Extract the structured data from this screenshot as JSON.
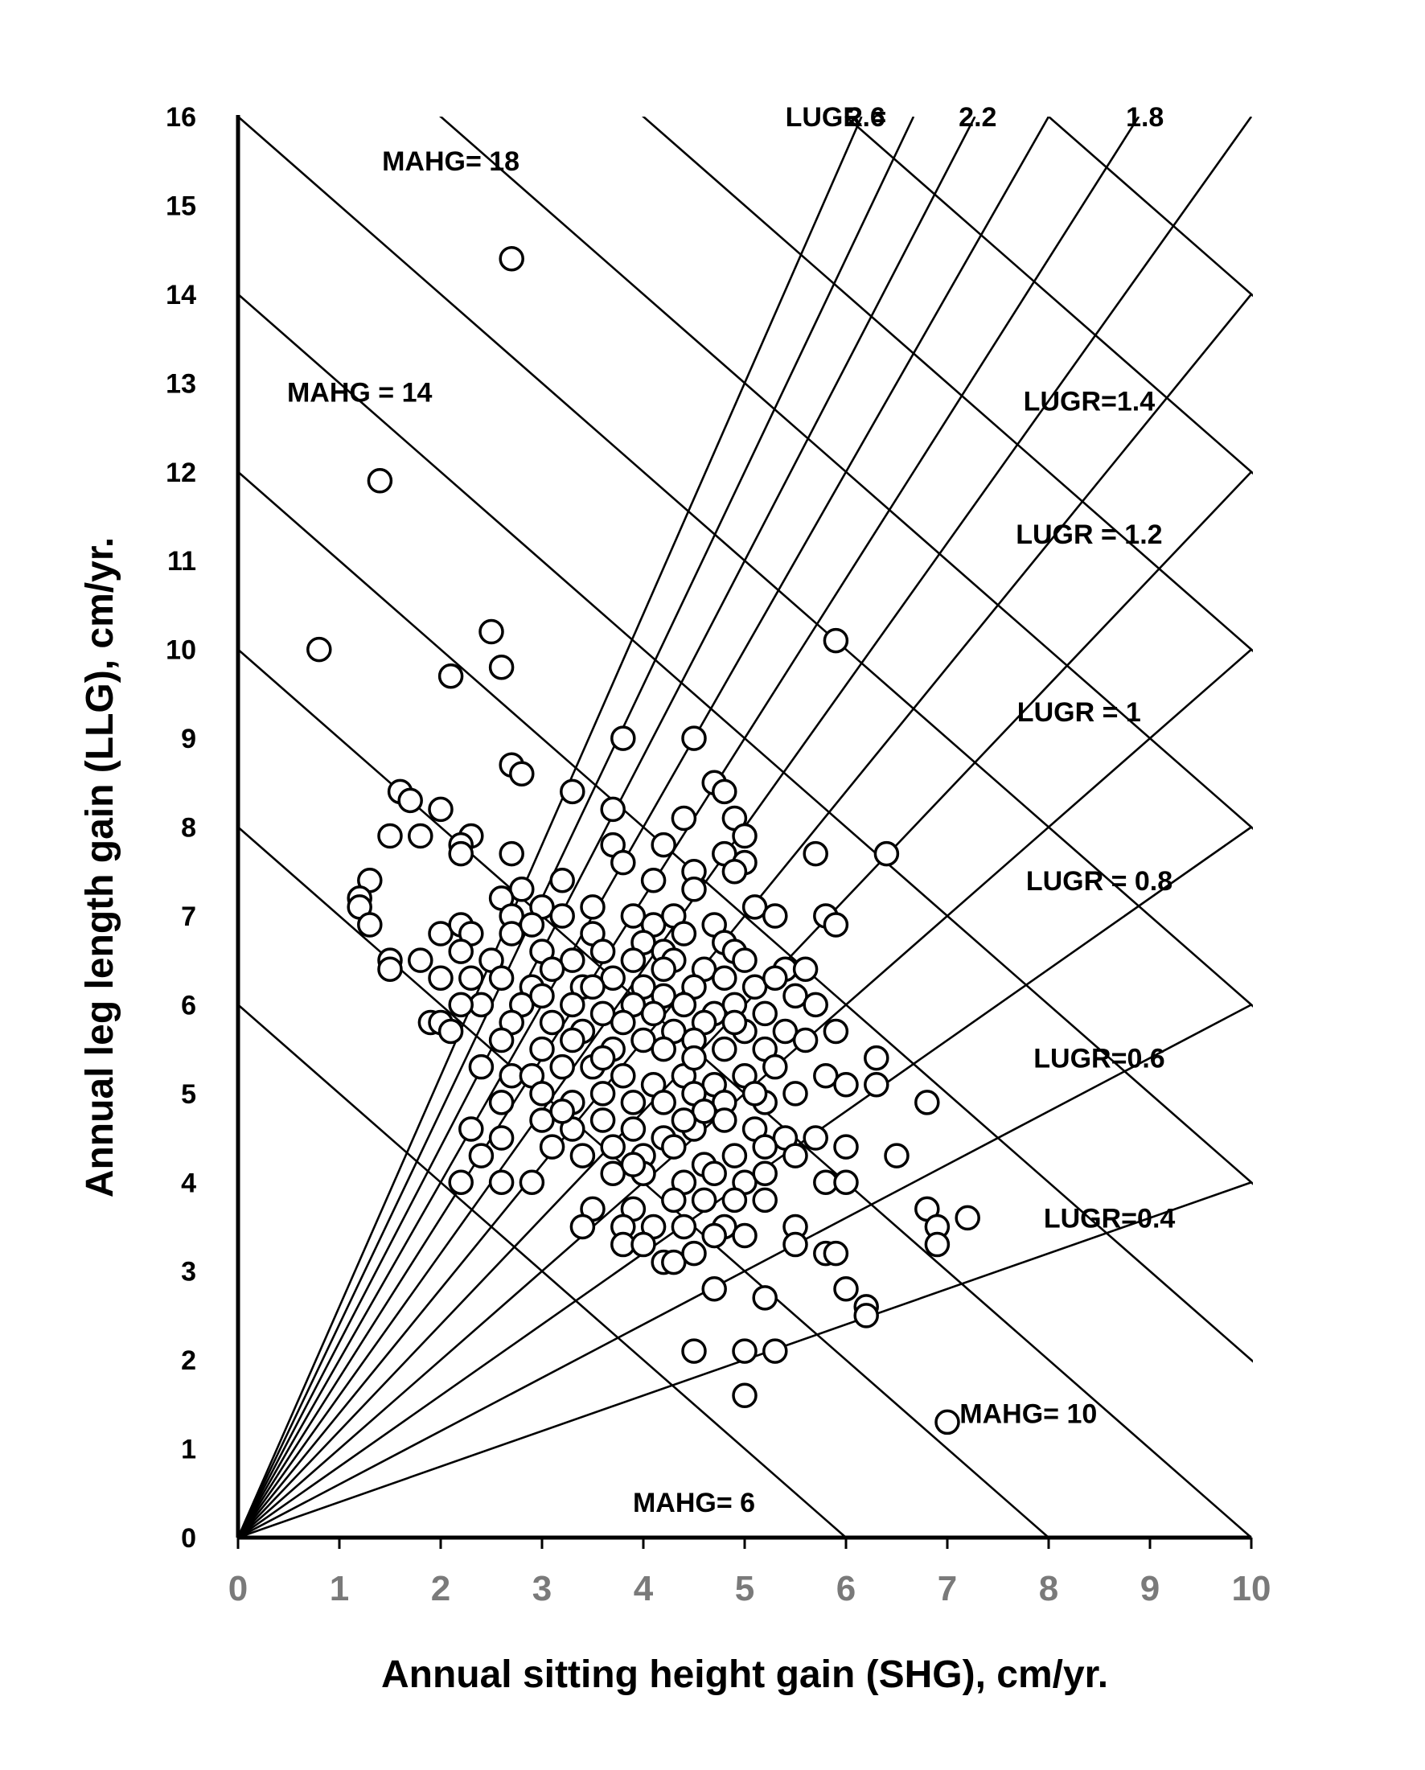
{
  "chart_data": {
    "type": "scatter",
    "xlabel": "Annual sitting height gain (SHG), cm/yr.",
    "ylabel": "Annual leg length gain (LLG), cm/yr.",
    "xlim": [
      0,
      10
    ],
    "ylim": [
      0,
      16
    ],
    "x_ticks": [
      "0",
      "1",
      "2",
      "3",
      "4",
      "5",
      "6",
      "7",
      "8",
      "9",
      "10"
    ],
    "y_ticks": [
      "0",
      "1",
      "2",
      "3",
      "4",
      "5",
      "6",
      "7",
      "8",
      "9",
      "10",
      "11",
      "12",
      "13",
      "14",
      "15",
      "16"
    ],
    "grid": false,
    "mahg_lines": [
      6,
      8,
      10,
      12,
      14,
      16,
      18,
      20,
      22,
      24
    ],
    "lugr_lines": [
      0.4,
      0.6,
      0.8,
      1.0,
      1.2,
      1.4,
      1.6,
      1.8,
      2.0,
      2.2,
      2.4,
      2.6
    ],
    "annotations": [
      {
        "text": "LUGR =",
        "x": 5.9,
        "y": 16.0
      },
      {
        "text": "2.6",
        "x": 6.2,
        "y": 16.0
      },
      {
        "text": "2.2",
        "x": 7.3,
        "y": 16.0
      },
      {
        "text": "1.8",
        "x": 8.95,
        "y": 16.0
      },
      {
        "text": "MAHG= 18",
        "x": 2.1,
        "y": 15.5
      },
      {
        "text": "MAHG = 14",
        "x": 1.2,
        "y": 12.9
      },
      {
        "text": "LUGR=1.4",
        "x": 8.4,
        "y": 12.8
      },
      {
        "text": "LUGR = 1.2",
        "x": 8.4,
        "y": 11.3
      },
      {
        "text": "LUGR = 1",
        "x": 8.3,
        "y": 9.3
      },
      {
        "text": "LUGR = 0.8",
        "x": 8.5,
        "y": 7.4
      },
      {
        "text": "LUGR=0.6",
        "x": 8.5,
        "y": 5.4
      },
      {
        "text": "LUGR=0.4",
        "x": 8.6,
        "y": 3.6
      },
      {
        "text": "MAHG= 10",
        "x": 7.8,
        "y": 1.4
      },
      {
        "text": "MAHG= 6",
        "x": 4.5,
        "y": 0.4
      }
    ],
    "series": [
      {
        "points": [
          [
            2.7,
            14.4
          ],
          [
            1.4,
            11.9
          ],
          [
            0.8,
            10.0
          ],
          [
            2.5,
            10.2
          ],
          [
            2.6,
            9.8
          ],
          [
            2.1,
            9.7
          ],
          [
            5.9,
            10.1
          ],
          [
            3.8,
            9.0
          ],
          [
            4.5,
            9.0
          ],
          [
            2.7,
            8.7
          ],
          [
            2.8,
            8.6
          ],
          [
            3.3,
            8.4
          ],
          [
            4.7,
            8.5
          ],
          [
            4.8,
            8.4
          ],
          [
            1.6,
            8.4
          ],
          [
            1.7,
            8.3
          ],
          [
            2.0,
            8.2
          ],
          [
            3.7,
            8.2
          ],
          [
            4.9,
            8.1
          ],
          [
            5.0,
            7.9
          ],
          [
            1.5,
            7.9
          ],
          [
            1.8,
            7.9
          ],
          [
            2.3,
            7.9
          ],
          [
            2.2,
            7.8
          ],
          [
            2.2,
            7.7
          ],
          [
            2.7,
            7.7
          ],
          [
            5.7,
            7.7
          ],
          [
            6.4,
            7.7
          ],
          [
            4.2,
            7.8
          ],
          [
            4.4,
            8.1
          ],
          [
            3.7,
            7.8
          ],
          [
            3.8,
            7.6
          ],
          [
            4.8,
            7.7
          ],
          [
            5.0,
            7.6
          ],
          [
            4.9,
            7.5
          ],
          [
            1.3,
            7.4
          ],
          [
            2.8,
            7.3
          ],
          [
            3.2,
            7.4
          ],
          [
            4.1,
            7.4
          ],
          [
            4.5,
            7.5
          ],
          [
            4.5,
            7.3
          ],
          [
            1.2,
            7.2
          ],
          [
            1.2,
            7.1
          ],
          [
            2.6,
            7.2
          ],
          [
            3.0,
            7.1
          ],
          [
            5.1,
            7.1
          ],
          [
            1.3,
            6.9
          ],
          [
            2.7,
            7.0
          ],
          [
            3.2,
            7.0
          ],
          [
            3.5,
            7.1
          ],
          [
            3.9,
            7.0
          ],
          [
            4.1,
            6.9
          ],
          [
            4.3,
            7.0
          ],
          [
            4.7,
            6.9
          ],
          [
            5.3,
            7.0
          ],
          [
            5.8,
            7.0
          ],
          [
            5.9,
            6.9
          ],
          [
            2.0,
            6.8
          ],
          [
            2.2,
            6.9
          ],
          [
            2.3,
            6.8
          ],
          [
            2.7,
            6.8
          ],
          [
            2.9,
            6.9
          ],
          [
            3.5,
            6.8
          ],
          [
            4.0,
            6.7
          ],
          [
            4.2,
            6.6
          ],
          [
            4.4,
            6.8
          ],
          [
            4.8,
            6.7
          ],
          [
            4.9,
            6.6
          ],
          [
            1.5,
            6.5
          ],
          [
            1.5,
            6.4
          ],
          [
            1.8,
            6.5
          ],
          [
            2.2,
            6.6
          ],
          [
            2.5,
            6.5
          ],
          [
            3.0,
            6.6
          ],
          [
            3.3,
            6.5
          ],
          [
            3.6,
            6.6
          ],
          [
            3.9,
            6.5
          ],
          [
            4.3,
            6.5
          ],
          [
            4.6,
            6.4
          ],
          [
            5.0,
            6.5
          ],
          [
            5.4,
            6.4
          ],
          [
            5.6,
            6.4
          ],
          [
            2.0,
            6.3
          ],
          [
            2.3,
            6.3
          ],
          [
            2.6,
            6.3
          ],
          [
            2.9,
            6.2
          ],
          [
            3.1,
            6.4
          ],
          [
            3.4,
            6.2
          ],
          [
            3.7,
            6.3
          ],
          [
            4.0,
            6.2
          ],
          [
            4.2,
            6.1
          ],
          [
            4.5,
            6.2
          ],
          [
            4.8,
            6.3
          ],
          [
            5.1,
            6.2
          ],
          [
            5.3,
            6.3
          ],
          [
            5.5,
            6.1
          ],
          [
            2.4,
            6.0
          ],
          [
            2.2,
            6.0
          ],
          [
            2.8,
            6.0
          ],
          [
            3.0,
            6.1
          ],
          [
            3.3,
            6.0
          ],
          [
            3.6,
            5.9
          ],
          [
            3.9,
            6.0
          ],
          [
            4.1,
            5.9
          ],
          [
            4.4,
            6.0
          ],
          [
            4.7,
            5.9
          ],
          [
            4.9,
            6.0
          ],
          [
            5.2,
            5.9
          ],
          [
            5.7,
            6.0
          ],
          [
            1.9,
            5.8
          ],
          [
            2.0,
            5.8
          ],
          [
            2.7,
            5.8
          ],
          [
            3.1,
            5.8
          ],
          [
            3.4,
            5.7
          ],
          [
            3.8,
            5.8
          ],
          [
            4.3,
            5.7
          ],
          [
            4.6,
            5.8
          ],
          [
            5.0,
            5.7
          ],
          [
            5.4,
            5.7
          ],
          [
            5.9,
            5.7
          ],
          [
            2.1,
            5.7
          ],
          [
            2.6,
            5.6
          ],
          [
            3.0,
            5.5
          ],
          [
            3.3,
            5.6
          ],
          [
            3.7,
            5.5
          ],
          [
            4.0,
            5.6
          ],
          [
            4.2,
            5.5
          ],
          [
            4.5,
            5.6
          ],
          [
            4.8,
            5.5
          ],
          [
            5.2,
            5.5
          ],
          [
            5.6,
            5.6
          ],
          [
            2.4,
            5.3
          ],
          [
            2.7,
            5.2
          ],
          [
            2.9,
            5.2
          ],
          [
            3.2,
            5.3
          ],
          [
            3.5,
            5.3
          ],
          [
            3.8,
            5.2
          ],
          [
            4.1,
            5.1
          ],
          [
            4.4,
            5.2
          ],
          [
            4.7,
            5.1
          ],
          [
            5.0,
            5.2
          ],
          [
            5.3,
            5.3
          ],
          [
            5.8,
            5.2
          ],
          [
            6.0,
            5.1
          ],
          [
            6.3,
            5.4
          ],
          [
            6.3,
            5.1
          ],
          [
            2.6,
            4.9
          ],
          [
            3.0,
            5.0
          ],
          [
            3.3,
            4.9
          ],
          [
            3.6,
            5.0
          ],
          [
            3.9,
            4.9
          ],
          [
            4.2,
            4.9
          ],
          [
            4.5,
            5.0
          ],
          [
            4.8,
            4.9
          ],
          [
            5.2,
            4.9
          ],
          [
            5.5,
            5.0
          ],
          [
            6.8,
            4.9
          ],
          [
            2.3,
            4.6
          ],
          [
            2.6,
            4.5
          ],
          [
            3.0,
            4.7
          ],
          [
            3.3,
            4.6
          ],
          [
            3.6,
            4.7
          ],
          [
            3.9,
            4.6
          ],
          [
            4.2,
            4.5
          ],
          [
            4.5,
            4.6
          ],
          [
            4.8,
            4.7
          ],
          [
            5.1,
            4.6
          ],
          [
            5.4,
            4.5
          ],
          [
            5.7,
            4.5
          ],
          [
            6.0,
            4.4
          ],
          [
            2.4,
            4.3
          ],
          [
            3.1,
            4.4
          ],
          [
            3.4,
            4.3
          ],
          [
            3.7,
            4.4
          ],
          [
            4.0,
            4.3
          ],
          [
            4.3,
            4.4
          ],
          [
            4.6,
            4.2
          ],
          [
            4.9,
            4.3
          ],
          [
            5.2,
            4.4
          ],
          [
            5.5,
            4.3
          ],
          [
            6.5,
            4.3
          ],
          [
            2.2,
            4.0
          ],
          [
            2.6,
            4.0
          ],
          [
            2.9,
            4.0
          ],
          [
            3.7,
            4.1
          ],
          [
            4.0,
            4.1
          ],
          [
            4.4,
            4.0
          ],
          [
            4.7,
            4.1
          ],
          [
            5.0,
            4.0
          ],
          [
            5.2,
            4.1
          ],
          [
            5.8,
            4.0
          ],
          [
            6.0,
            4.0
          ],
          [
            3.5,
            3.7
          ],
          [
            3.9,
            3.7
          ],
          [
            4.3,
            3.8
          ],
          [
            4.6,
            3.8
          ],
          [
            4.9,
            3.8
          ],
          [
            5.2,
            3.8
          ],
          [
            6.8,
            3.7
          ],
          [
            3.4,
            3.5
          ],
          [
            3.8,
            3.5
          ],
          [
            4.1,
            3.5
          ],
          [
            4.4,
            3.5
          ],
          [
            4.8,
            3.5
          ],
          [
            5.0,
            3.4
          ],
          [
            5.5,
            3.5
          ],
          [
            6.9,
            3.5
          ],
          [
            7.2,
            3.6
          ],
          [
            3.8,
            3.3
          ],
          [
            4.0,
            3.3
          ],
          [
            4.7,
            3.4
          ],
          [
            5.5,
            3.3
          ],
          [
            5.8,
            3.2
          ],
          [
            6.9,
            3.3
          ],
          [
            4.2,
            3.1
          ],
          [
            4.3,
            3.1
          ],
          [
            4.5,
            3.2
          ],
          [
            5.9,
            3.2
          ],
          [
            4.7,
            2.8
          ],
          [
            5.2,
            2.7
          ],
          [
            6.0,
            2.8
          ],
          [
            6.2,
            2.6
          ],
          [
            6.2,
            2.5
          ],
          [
            4.5,
            2.1
          ],
          [
            5.0,
            2.1
          ],
          [
            5.3,
            2.1
          ],
          [
            5.0,
            1.6
          ],
          [
            7.0,
            1.3
          ],
          [
            3.5,
            6.2
          ],
          [
            4.5,
            5.4
          ],
          [
            4.2,
            6.4
          ],
          [
            3.9,
            4.2
          ],
          [
            4.6,
            4.8
          ],
          [
            5.1,
            5.0
          ],
          [
            3.2,
            4.8
          ],
          [
            4.9,
            5.8
          ],
          [
            3.6,
            5.4
          ],
          [
            4.4,
            4.7
          ]
        ]
      }
    ]
  }
}
